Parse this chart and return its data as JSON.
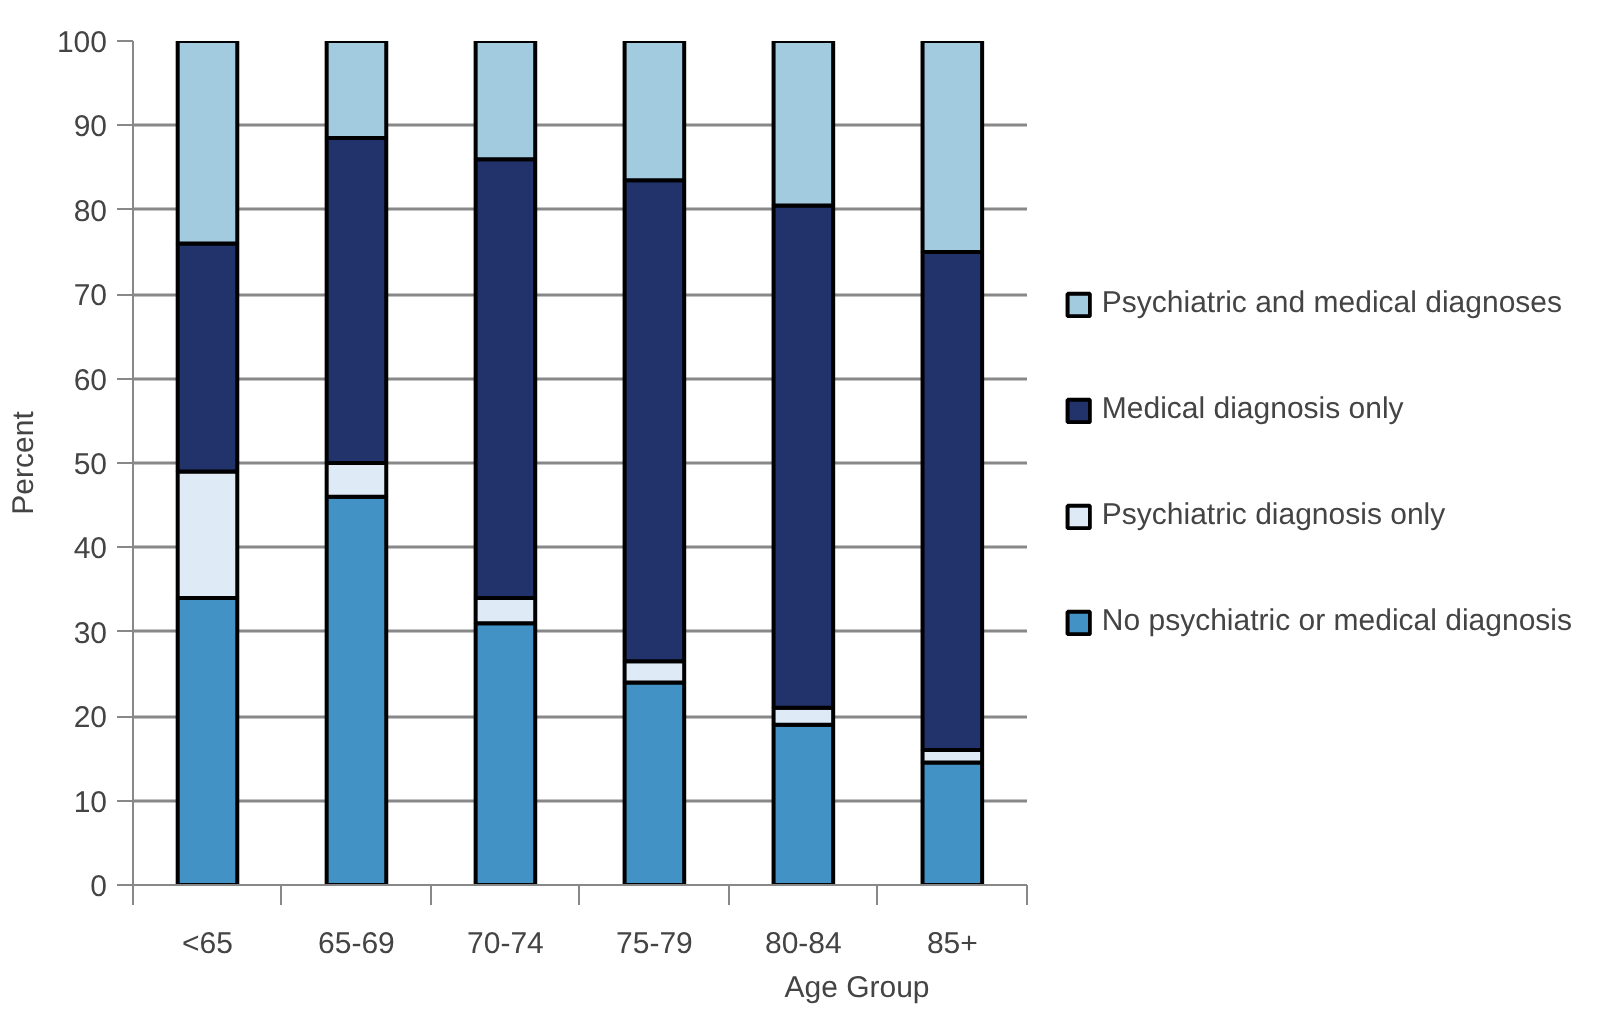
{
  "chart_data": {
    "type": "bar",
    "stacked": true,
    "xlabel": "Age Group",
    "ylabel": "Percent",
    "categories": [
      "<65",
      "65-69",
      "70-74",
      "75-79",
      "80-84",
      "85+"
    ],
    "series": [
      {
        "name": "No psychiatric or medical diagnosis",
        "color": "#4292c6",
        "values": [
          34,
          46,
          31,
          24,
          19,
          14.5
        ]
      },
      {
        "name": "Psychiatric diagnosis only",
        "color": "#deebf7",
        "values": [
          15,
          4,
          3,
          2.5,
          2,
          1.5
        ]
      },
      {
        "name": "Medical diagnosis only",
        "color": "#21336a",
        "values": [
          27,
          38.5,
          52,
          57,
          59.5,
          59
        ]
      },
      {
        "name": "Psychiatric and medical diagnoses",
        "color": "#a3cbe0",
        "values": [
          24,
          11.5,
          14,
          16.5,
          19.5,
          25
        ]
      }
    ],
    "ylim": [
      0,
      100
    ],
    "yticks": [
      0,
      10,
      20,
      30,
      40,
      50,
      60,
      70,
      80,
      90,
      100
    ],
    "grid": "y",
    "legend": "right"
  }
}
